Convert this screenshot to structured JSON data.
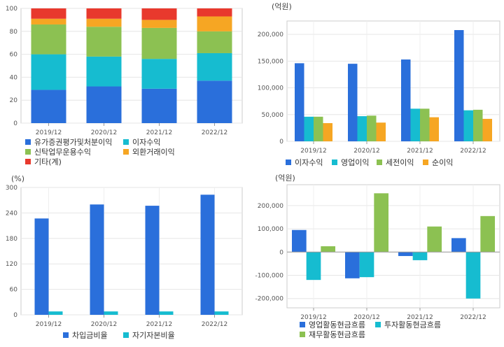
{
  "chart_data": [
    {
      "id": "revenue-composition",
      "type": "bar",
      "stacked": true,
      "unit": "",
      "categories": [
        "2019/12",
        "2020/12",
        "2021/12",
        "2022/12"
      ],
      "ylim": [
        0,
        100
      ],
      "yticks": [
        0,
        20,
        40,
        60,
        80,
        100
      ],
      "series": [
        {
          "name": "유가증권평가및처분이익",
          "color": "#2a6fdb",
          "values": [
            29,
            32,
            30,
            37
          ]
        },
        {
          "name": "이자수익",
          "color": "#16bcd0",
          "values": [
            31,
            26,
            26,
            24
          ]
        },
        {
          "name": "신탁업무운용수익",
          "color": "#8cc152",
          "values": [
            26,
            26,
            27,
            19
          ]
        },
        {
          "name": "외환거래이익",
          "color": "#f6a623",
          "values": [
            5,
            7,
            7,
            13
          ]
        },
        {
          "name": "기타(계)",
          "color": "#e8392d",
          "values": [
            9,
            9,
            10,
            7
          ]
        }
      ]
    },
    {
      "id": "income-items",
      "type": "bar",
      "unit": "(억원)",
      "categories": [
        "2019/12",
        "2020/12",
        "2021/12",
        "2022/12"
      ],
      "ylim": [
        0,
        225000
      ],
      "yticks": [
        0,
        50000,
        100000,
        150000,
        200000
      ],
      "series": [
        {
          "name": "이자수익",
          "color": "#2a6fdb",
          "values": [
            146000,
            145000,
            153000,
            208000
          ]
        },
        {
          "name": "영업이익",
          "color": "#16bcd0",
          "values": [
            46000,
            47000,
            61000,
            58000
          ]
        },
        {
          "name": "세전이익",
          "color": "#8cc152",
          "values": [
            46000,
            48000,
            61000,
            59000
          ]
        },
        {
          "name": "순이익",
          "color": "#f6a623",
          "values": [
            34000,
            35000,
            45000,
            42000
          ]
        }
      ]
    },
    {
      "id": "ratios",
      "type": "bar",
      "unit": "(%)",
      "categories": [
        "2019/12",
        "2020/12",
        "2021/12",
        "2022/12"
      ],
      "ylim": [
        0,
        300
      ],
      "yticks": [
        0,
        60,
        120,
        180,
        240,
        300
      ],
      "series": [
        {
          "name": "차입금비율",
          "color": "#2a6fdb",
          "values": [
            227,
            260,
            257,
            283
          ]
        },
        {
          "name": "자기자본비율",
          "color": "#16bcd0",
          "values": [
            8,
            8,
            8,
            8
          ]
        }
      ]
    },
    {
      "id": "cash-flow",
      "type": "bar",
      "unit": "(억원)",
      "categories": [
        "2019/12",
        "2020/12",
        "2021/12",
        "2022/12"
      ],
      "ylim": [
        -240000,
        290000
      ],
      "yticks": [
        -200000,
        -100000,
        0,
        100000,
        200000
      ],
      "series": [
        {
          "name": "영업활동현금흐름",
          "color": "#2a6fdb",
          "values": [
            95000,
            -113000,
            -17000,
            60000
          ]
        },
        {
          "name": "투자활동현금흐름",
          "color": "#16bcd0",
          "values": [
            -120000,
            -108000,
            -35000,
            -200000
          ]
        },
        {
          "name": "재무활동현금흐름",
          "color": "#8cc152",
          "values": [
            25000,
            253000,
            110000,
            155000
          ]
        }
      ]
    }
  ]
}
